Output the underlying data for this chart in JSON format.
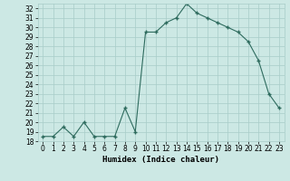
{
  "x": [
    0,
    1,
    2,
    3,
    4,
    5,
    6,
    7,
    8,
    9,
    10,
    11,
    12,
    13,
    14,
    15,
    16,
    17,
    18,
    19,
    20,
    21,
    22,
    23
  ],
  "y": [
    18.5,
    18.5,
    19.5,
    18.5,
    20.0,
    18.5,
    18.5,
    18.5,
    21.5,
    19.0,
    29.5,
    29.5,
    30.5,
    31.0,
    32.5,
    31.5,
    31.0,
    30.5,
    30.0,
    29.5,
    28.5,
    26.5,
    23.0,
    21.5
  ],
  "line_color": "#2e6b5e",
  "marker_color": "#2e6b5e",
  "bg_color": "#cce8e4",
  "grid_color": "#a8ccc8",
  "xlabel": "Humidex (Indice chaleur)",
  "xlim": [
    -0.5,
    23.5
  ],
  "ylim": [
    18.0,
    32.5
  ],
  "yticks": [
    18,
    19,
    20,
    21,
    22,
    23,
    24,
    25,
    26,
    27,
    28,
    29,
    30,
    31,
    32
  ],
  "xticks": [
    0,
    1,
    2,
    3,
    4,
    5,
    6,
    7,
    8,
    9,
    10,
    11,
    12,
    13,
    14,
    15,
    16,
    17,
    18,
    19,
    20,
    21,
    22,
    23
  ],
  "tick_fontsize": 5.5,
  "xlabel_fontsize": 6.5,
  "linewidth": 0.8,
  "markersize": 3.0,
  "markeredgewidth": 1.0
}
